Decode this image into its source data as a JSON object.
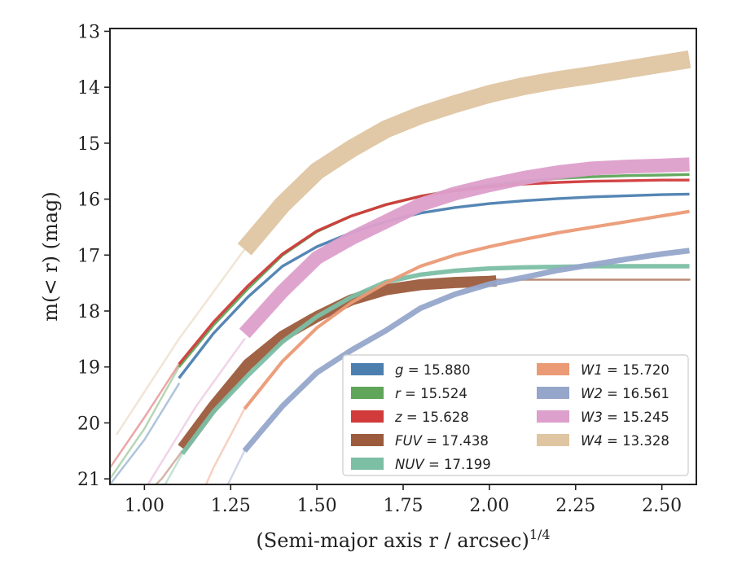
{
  "chart_data": {
    "type": "line",
    "xlabel_main": "(Semi-major axis r / arcsec)",
    "xlabel_sup": "1/4",
    "ylabel": "m(< r) (mag)",
    "xlim": [
      0.9,
      2.6
    ],
    "ylim": [
      21.1,
      12.95
    ],
    "y_inverted": true,
    "grid": false,
    "legend_position": "lower-right",
    "x_ticks": [
      1.0,
      1.25,
      1.5,
      1.75,
      2.0,
      2.25,
      2.5
    ],
    "x_tick_labels": [
      "1.00",
      "1.25",
      "1.50",
      "1.75",
      "2.00",
      "2.25",
      "2.50"
    ],
    "y_ticks": [
      13,
      14,
      15,
      16,
      17,
      18,
      19,
      20,
      21
    ],
    "y_tick_labels": [
      "13",
      "14",
      "15",
      "16",
      "17",
      "18",
      "19",
      "20",
      "21"
    ],
    "series": [
      {
        "name": "g = 15.880",
        "label_var": "g",
        "label_val": "15.880",
        "color": "#4c7fb0",
        "band_width": 0.05,
        "faint": [
          [
            0.9,
            21.1
          ],
          [
            1.0,
            20.3
          ],
          [
            1.1,
            19.3
          ]
        ],
        "x": [
          1.1,
          1.2,
          1.3,
          1.4,
          1.5,
          1.6,
          1.7,
          1.8,
          1.9,
          2.0,
          2.1,
          2.2,
          2.3,
          2.4,
          2.5,
          2.58
        ],
        "y": [
          19.2,
          18.4,
          17.75,
          17.2,
          16.85,
          16.6,
          16.4,
          16.25,
          16.15,
          16.08,
          16.03,
          15.99,
          15.96,
          15.94,
          15.92,
          15.91
        ]
      },
      {
        "name": "r = 15.524",
        "label_var": "r",
        "label_val": "15.524",
        "color": "#5fa55a",
        "band_width": 0.05,
        "faint": [
          [
            0.9,
            21.0
          ],
          [
            1.0,
            20.1
          ],
          [
            1.1,
            19.0
          ]
        ],
        "x": [
          1.1,
          1.2,
          1.3,
          1.4,
          1.5,
          1.6,
          1.7,
          1.8,
          1.9,
          2.0,
          2.1,
          2.2,
          2.3,
          2.4,
          2.5,
          2.58
        ],
        "y": [
          19.0,
          18.25,
          17.6,
          17.0,
          16.58,
          16.3,
          16.1,
          15.95,
          15.84,
          15.75,
          15.68,
          15.63,
          15.6,
          15.58,
          15.57,
          15.56
        ]
      },
      {
        "name": "z = 15.628",
        "label_var": "z",
        "label_val": "15.628",
        "color": "#d13b3b",
        "band_width": 0.05,
        "faint": [
          [
            0.9,
            20.8
          ],
          [
            1.0,
            19.9
          ],
          [
            1.1,
            18.95
          ]
        ],
        "x": [
          1.1,
          1.2,
          1.3,
          1.4,
          1.5,
          1.6,
          1.7,
          1.8,
          1.9,
          2.0,
          2.1,
          2.2,
          2.3,
          2.4,
          2.5,
          2.58
        ],
        "y": [
          18.95,
          18.2,
          17.55,
          16.98,
          16.57,
          16.3,
          16.1,
          15.95,
          15.85,
          15.78,
          15.73,
          15.7,
          15.68,
          15.67,
          15.66,
          15.66
        ]
      },
      {
        "name": "FUV = 17.438",
        "label_var": "FUV",
        "label_val": "17.438",
        "color": "#9c5b3c",
        "band_width": 0.2,
        "faint": [
          [
            0.95,
            21.6
          ],
          [
            1.05,
            21.0
          ],
          [
            1.11,
            20.5
          ]
        ],
        "faint_after": [
          [
            2.02,
            17.44
          ],
          [
            2.3,
            17.44
          ],
          [
            2.58,
            17.44
          ]
        ],
        "x": [
          1.11,
          1.2,
          1.3,
          1.4,
          1.5,
          1.6,
          1.7,
          1.8,
          1.9,
          2.0,
          2.02
        ],
        "y": [
          20.45,
          19.7,
          18.95,
          18.45,
          18.1,
          17.8,
          17.62,
          17.53,
          17.49,
          17.47,
          17.46
        ]
      },
      {
        "name": "NUV = 17.199",
        "label_var": "NUV",
        "label_val": "17.199",
        "color": "#7cbfa5",
        "band_width": 0.08,
        "faint": [
          [
            1.0,
            21.7
          ],
          [
            1.06,
            21.1
          ],
          [
            1.11,
            20.55
          ]
        ],
        "x": [
          1.11,
          1.2,
          1.3,
          1.4,
          1.5,
          1.6,
          1.7,
          1.8,
          1.9,
          2.0,
          2.1,
          2.2,
          2.3,
          2.4,
          2.5,
          2.58
        ],
        "y": [
          20.55,
          19.8,
          19.15,
          18.55,
          18.1,
          17.75,
          17.48,
          17.35,
          17.28,
          17.24,
          17.22,
          17.21,
          17.2,
          17.2,
          17.2,
          17.2
        ]
      },
      {
        "name": "W1 = 15.720",
        "label_var": "W1",
        "label_val": "15.720",
        "color": "#eb9a76",
        "band_width": 0.06,
        "faint": [
          [
            1.15,
            21.5
          ],
          [
            1.2,
            20.8
          ],
          [
            1.29,
            19.75
          ]
        ],
        "x": [
          1.29,
          1.4,
          1.5,
          1.6,
          1.7,
          1.8,
          1.9,
          2.0,
          2.1,
          2.2,
          2.3,
          2.4,
          2.5,
          2.58
        ],
        "y": [
          19.75,
          18.9,
          18.3,
          17.85,
          17.5,
          17.2,
          17.0,
          16.85,
          16.72,
          16.6,
          16.5,
          16.4,
          16.3,
          16.22
        ]
      },
      {
        "name": "W2 = 16.561",
        "label_var": "W2",
        "label_val": "16.561",
        "color": "#96a6cb",
        "band_width": 0.1,
        "faint": [
          [
            1.2,
            21.6
          ],
          [
            1.25,
            21.0
          ],
          [
            1.29,
            20.5
          ]
        ],
        "x": [
          1.29,
          1.4,
          1.5,
          1.6,
          1.7,
          1.8,
          1.9,
          2.0,
          2.1,
          2.2,
          2.3,
          2.4,
          2.5,
          2.58
        ],
        "y": [
          20.5,
          19.7,
          19.1,
          18.7,
          18.35,
          17.95,
          17.7,
          17.52,
          17.4,
          17.27,
          17.17,
          17.07,
          16.98,
          16.92
        ]
      },
      {
        "name": "W3 = 15.245",
        "label_var": "W3",
        "label_val": "15.245",
        "color": "#dd9fcb",
        "band_width": 0.25,
        "faint": [
          [
            1.0,
            21.2
          ],
          [
            1.15,
            19.7
          ],
          [
            1.29,
            18.5
          ]
        ],
        "x": [
          1.29,
          1.4,
          1.5,
          1.6,
          1.7,
          1.8,
          1.9,
          2.0,
          2.1,
          2.2,
          2.3,
          2.4,
          2.5,
          2.58
        ],
        "y": [
          18.4,
          17.65,
          17.05,
          16.7,
          16.4,
          16.1,
          15.9,
          15.75,
          15.62,
          15.52,
          15.45,
          15.42,
          15.4,
          15.38
        ]
      },
      {
        "name": "W4 = 13.328",
        "label_var": "W4",
        "label_val": "13.328",
        "color": "#dfc5a1",
        "band_width": 0.32,
        "faint": [
          [
            0.92,
            20.2
          ],
          [
            1.1,
            18.5
          ],
          [
            1.29,
            16.9
          ]
        ],
        "x": [
          1.29,
          1.4,
          1.5,
          1.6,
          1.7,
          1.8,
          1.9,
          2.0,
          2.1,
          2.2,
          2.3,
          2.4,
          2.5,
          2.58
        ],
        "y": [
          16.9,
          16.1,
          15.5,
          15.1,
          14.75,
          14.5,
          14.3,
          14.12,
          13.98,
          13.87,
          13.78,
          13.68,
          13.58,
          13.5
        ]
      }
    ]
  }
}
